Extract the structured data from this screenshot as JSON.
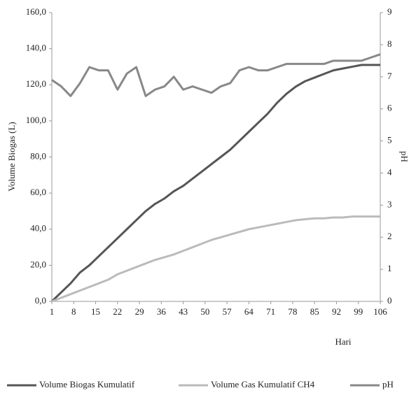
{
  "chart_data": {
    "type": "line",
    "x_label": "Hari",
    "y_label": "Volume Biogas (L)",
    "y2_label": "pH",
    "x": [
      1,
      4,
      7,
      10,
      13,
      16,
      19,
      22,
      25,
      28,
      31,
      34,
      37,
      40,
      43,
      46,
      49,
      52,
      55,
      58,
      61,
      64,
      67,
      70,
      73,
      76,
      79,
      82,
      85,
      88,
      91,
      94,
      97,
      100,
      103,
      106
    ],
    "xlim": [
      1,
      106
    ],
    "xticks": [
      1,
      8,
      15,
      22,
      29,
      36,
      43,
      50,
      57,
      64,
      71,
      78,
      85,
      92,
      99,
      106
    ],
    "ylim": [
      0,
      160
    ],
    "yticks": [
      {
        "value": 0,
        "label": "0,0"
      },
      {
        "value": 20,
        "label": "20,0"
      },
      {
        "value": 40,
        "label": "40,0"
      },
      {
        "value": 60,
        "label": "60,0"
      },
      {
        "value": 80,
        "label": "80,0"
      },
      {
        "value": 100,
        "label": "100,0"
      },
      {
        "value": 120,
        "label": "120,0"
      },
      {
        "value": 140,
        "label": "140,0"
      },
      {
        "value": 160,
        "label": "160,0"
      }
    ],
    "y2lim": [
      0,
      9
    ],
    "y2ticks": [
      0,
      1,
      2,
      3,
      4,
      5,
      6,
      7,
      8,
      9
    ],
    "series": [
      {
        "name": "Volume Biogas Kumulatif",
        "color": "#555555",
        "values": [
          0,
          5,
          10,
          16,
          20,
          25,
          30,
          35,
          40,
          45,
          50,
          54,
          57,
          61,
          64,
          68,
          72,
          76,
          80,
          84,
          89,
          94,
          99,
          104,
          110,
          115,
          119,
          122,
          124,
          126,
          128,
          129,
          130,
          131,
          131,
          131
        ]
      },
      {
        "name": "Volume Gas Kumulatif CH4",
        "color": "#bbbbbb",
        "values": [
          0,
          2,
          4,
          6,
          8,
          10,
          12,
          15,
          17,
          19,
          21,
          23,
          24.5,
          26,
          28,
          30,
          32,
          34,
          35.5,
          37,
          38.5,
          40,
          41,
          42,
          43,
          44,
          45,
          45.5,
          46,
          46,
          46.5,
          46.5,
          47,
          47,
          47,
          47
        ]
      },
      {
        "name": "pH",
        "color": "#888888",
        "axis": "y2",
        "values": [
          6.9,
          6.7,
          6.4,
          6.8,
          7.3,
          7.2,
          7.2,
          6.6,
          7.1,
          7.3,
          6.4,
          6.6,
          6.7,
          7.0,
          6.6,
          6.7,
          6.6,
          6.5,
          6.7,
          6.8,
          7.2,
          7.3,
          7.2,
          7.2,
          7.3,
          7.4,
          7.4,
          7.4,
          7.4,
          7.4,
          7.5,
          7.5,
          7.5,
          7.5,
          7.6,
          7.7
        ]
      }
    ]
  }
}
